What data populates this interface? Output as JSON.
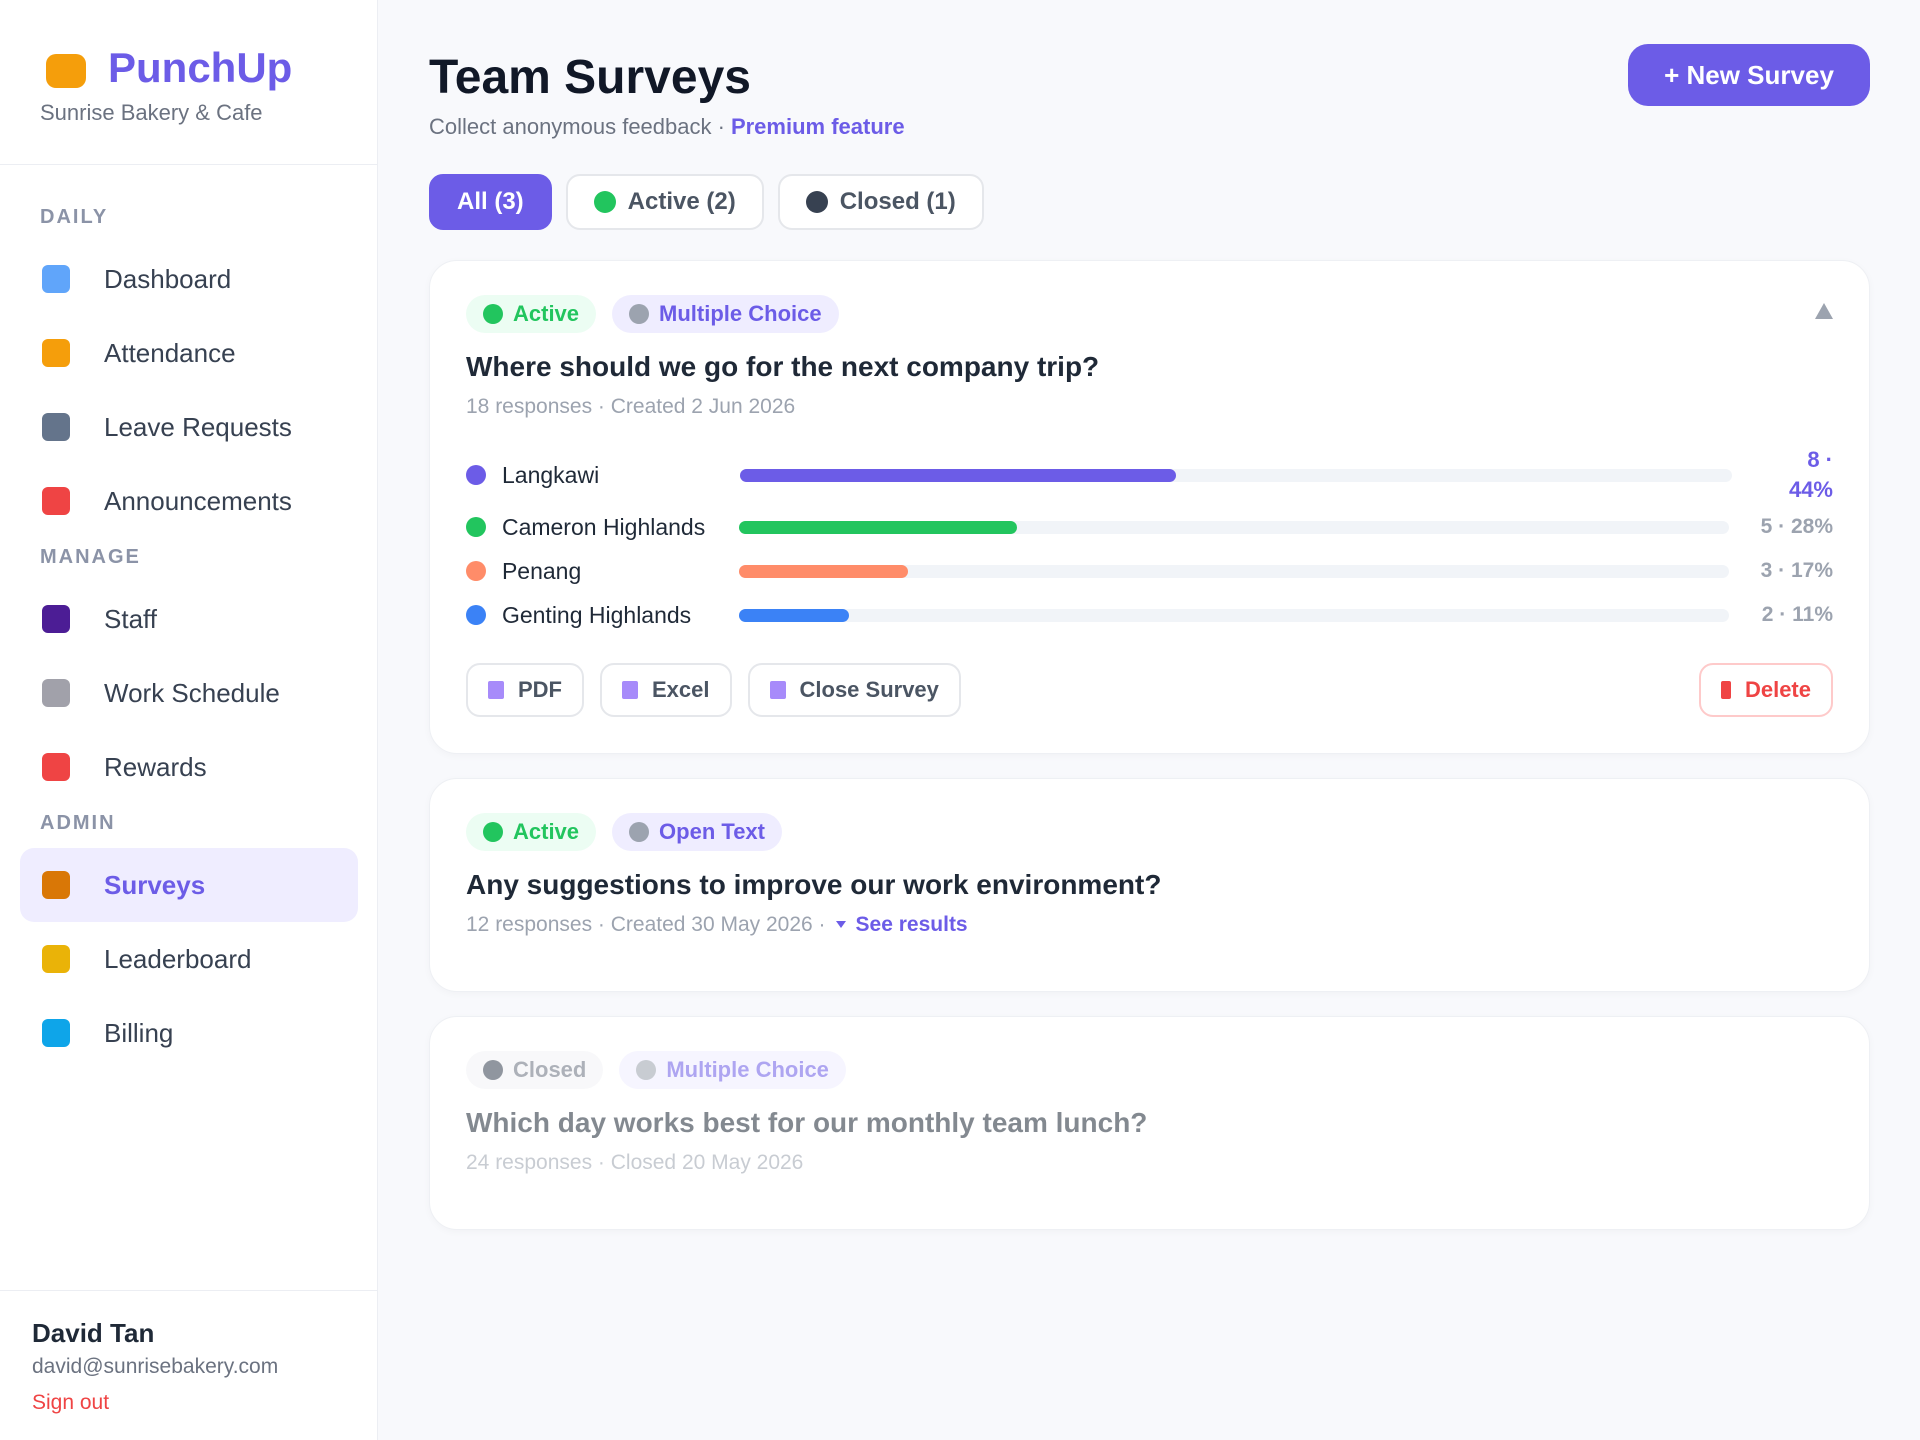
{
  "sidebar": {
    "brand": "PunchUp",
    "business": "Sunrise Bakery & Cafe",
    "sections": [
      {
        "heading": "DAILY",
        "items": [
          {
            "label": "Dashboard",
            "icon": "#60a5fa"
          },
          {
            "label": "Attendance",
            "icon": "#f59e0b"
          },
          {
            "label": "Leave Requests",
            "icon": "#64748b"
          },
          {
            "label": "Announcements",
            "icon": "#ef4444"
          }
        ]
      },
      {
        "heading": "MANAGE",
        "items": [
          {
            "label": "Staff",
            "icon": "#4c1d95"
          },
          {
            "label": "Work Schedule",
            "icon": "#a1a1aa"
          },
          {
            "label": "Rewards",
            "icon": "#ef4444"
          }
        ]
      },
      {
        "heading": "ADMIN",
        "items": [
          {
            "label": "Surveys",
            "icon": "#d97706",
            "active": true
          },
          {
            "label": "Leaderboard",
            "icon": "#eab308"
          },
          {
            "label": "Billing",
            "icon": "#0ea5e9"
          }
        ]
      }
    ],
    "user": {
      "name": "David Tan",
      "email": "david@sunrisebakery.com",
      "sign_out": "Sign out"
    }
  },
  "header": {
    "title": "Team Surveys",
    "subtitle": "Collect anonymous feedback ·",
    "premium": "Premium feature",
    "new_button": "+ New Survey"
  },
  "filters": [
    {
      "label": "All (3)",
      "selected": true
    },
    {
      "label": "Active (2)",
      "dot": "#22c55e"
    },
    {
      "label": "Closed (1)",
      "dot": "#374151"
    }
  ],
  "surveys": [
    {
      "status": "Active",
      "type": "Multiple Choice",
      "question": "Where should we go for the next company trip?",
      "meta": "18 responses · Created 2 Jun 2026",
      "options": [
        {
          "label": "Langkawi",
          "result": "8 · 44%",
          "share": 44,
          "color": "#6c5ce7",
          "lead": true
        },
        {
          "label": "Cameron Highlands",
          "result": "5 · 28%",
          "share": 28,
          "color": "#22c55e"
        },
        {
          "label": "Penang",
          "result": "3 · 17%",
          "share": 17,
          "color": "#ff8c69"
        },
        {
          "label": "Genting Highlands",
          "result": "2 · 11%",
          "share": 11,
          "color": "#3b82f6"
        }
      ],
      "actions": [
        "PDF",
        "Excel",
        "Close Survey"
      ],
      "delete": "Delete"
    },
    {
      "status": "Active",
      "type": "Open Text",
      "question": "Any suggestions to improve our work environment?",
      "meta": "12 responses · Created 30 May 2026 ·",
      "link": "See results"
    },
    {
      "status": "Closed",
      "type": "Multiple Choice",
      "question": "Which day works best for our monthly team lunch?",
      "meta": "24 responses · Closed 20 May 2026",
      "closed": true
    }
  ]
}
